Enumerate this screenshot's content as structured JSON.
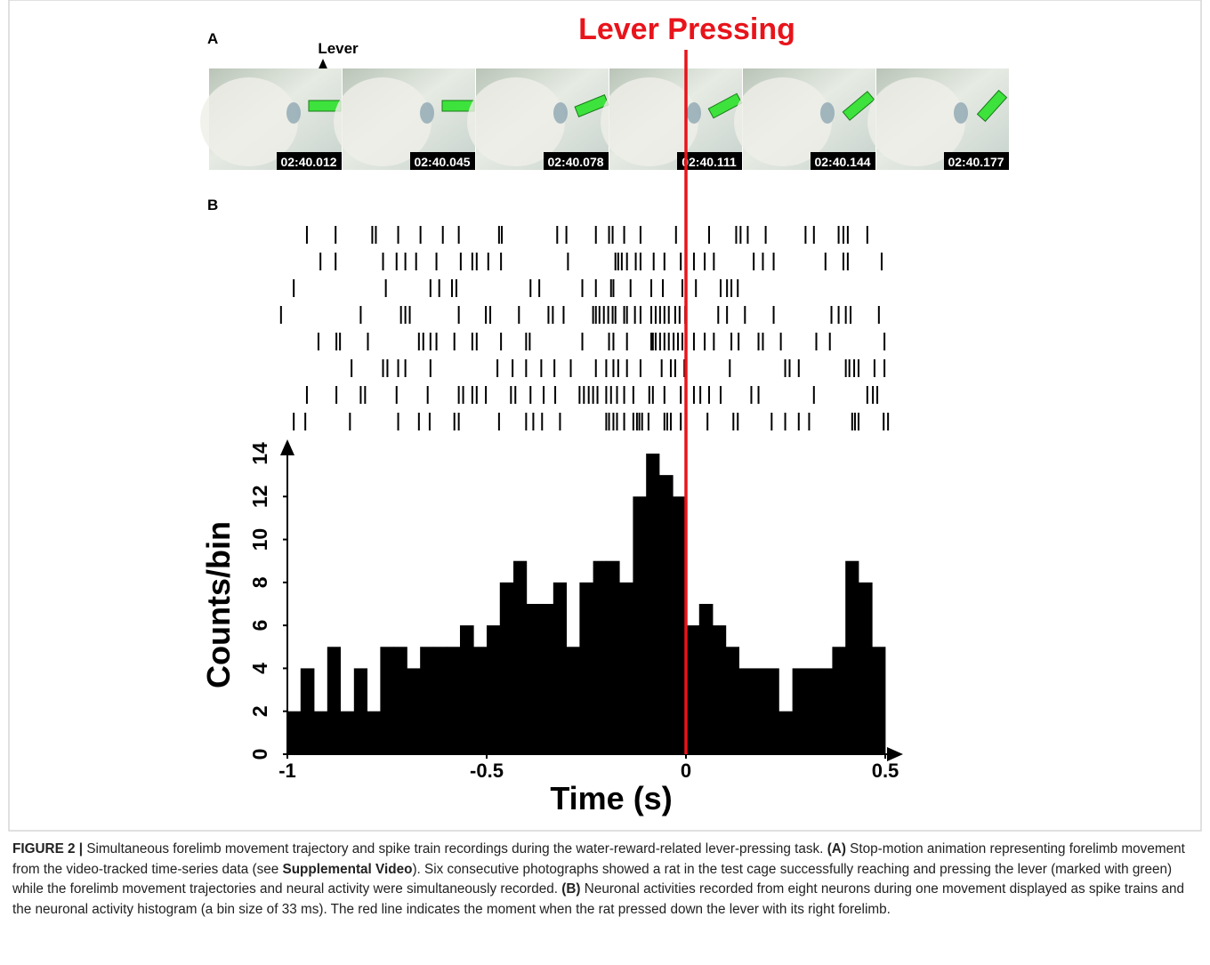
{
  "panel_a": {
    "label": "A",
    "lever_label": "Lever",
    "frames": [
      "02:40.012",
      "02:40.045",
      "02:40.078",
      "02:40.111",
      "02:40.144",
      "02:40.177"
    ]
  },
  "panel_b": {
    "label": "B"
  },
  "event": {
    "label": "Lever Pressing",
    "x": 0,
    "color": "#e8141b"
  },
  "chart_data": [
    {
      "type": "raster",
      "xlim": [
        -1,
        0.5
      ],
      "color": "#000000",
      "trains": [
        [
          -0.951,
          -0.879,
          -0.787,
          -0.778,
          -0.722,
          -0.666,
          -0.61,
          -0.57,
          -0.469,
          -0.462,
          -0.323,
          -0.3,
          -0.226,
          -0.193,
          -0.184,
          -0.155,
          -0.114,
          -0.025,
          0.058,
          0.126,
          0.137,
          0.155,
          0.2,
          0.3,
          0.321,
          0.383,
          0.395,
          0.406,
          0.455
        ],
        [
          -0.917,
          -0.879,
          -0.76,
          -0.726,
          -0.704,
          -0.677,
          -0.626,
          -0.565,
          -0.536,
          -0.525,
          -0.496,
          -0.464,
          -0.296,
          -0.177,
          -0.17,
          -0.161,
          -0.148,
          -0.126,
          -0.114,
          -0.081,
          -0.054,
          -0.013,
          0.02,
          0.047,
          0.07,
          0.17,
          0.193,
          0.22,
          0.35,
          0.395,
          0.406,
          0.491
        ],
        [
          -0.984,
          -0.753,
          -0.641,
          -0.619,
          -0.587,
          -0.576,
          -0.39,
          -0.368,
          -0.26,
          -0.226,
          -0.188,
          -0.182,
          -0.139,
          -0.087,
          -0.058,
          -0.009,
          0.025,
          0.087,
          0.103,
          0.114,
          0.13
        ],
        [
          -1.016,
          -0.816,
          -0.715,
          -0.704,
          -0.693,
          -0.57,
          -0.502,
          -0.491,
          -0.419,
          -0.345,
          -0.334,
          -0.307,
          -0.233,
          -0.226,
          -0.217,
          -0.206,
          -0.195,
          -0.184,
          -0.177,
          -0.155,
          -0.148,
          -0.128,
          -0.114,
          -0.087,
          -0.076,
          -0.065,
          -0.054,
          -0.043,
          -0.027,
          -0.016,
          -0.002,
          0.081,
          0.103,
          0.148,
          0.22,
          0.365,
          0.383,
          0.401,
          0.413,
          0.484
        ],
        [
          -0.922,
          -0.877,
          -0.868,
          -0.798,
          -0.67,
          -0.659,
          -0.641,
          -0.626,
          -0.581,
          -0.536,
          -0.525,
          -0.464,
          -0.401,
          -0.392,
          -0.26,
          -0.193,
          -0.182,
          -0.148,
          -0.087,
          -0.083,
          -0.076,
          -0.065,
          -0.054,
          -0.043,
          -0.031,
          -0.02,
          -0.009,
          0.02,
          0.047,
          0.07,
          0.114,
          0.132,
          0.182,
          0.193,
          0.238,
          0.327,
          0.361,
          0.498
        ],
        [
          -0.839,
          -0.76,
          -0.749,
          -0.722,
          -0.704,
          -0.641,
          -0.473,
          -0.435,
          -0.401,
          -0.363,
          -0.33,
          -0.289,
          -0.226,
          -0.2,
          -0.182,
          -0.17,
          -0.148,
          -0.114,
          -0.061,
          -0.038,
          -0.027,
          -0.004,
          0.11,
          0.249,
          0.26,
          0.283,
          0.401,
          0.41,
          0.422,
          0.433,
          0.473,
          0.498
        ],
        [
          -0.951,
          -0.877,
          -0.816,
          -0.805,
          -0.726,
          -0.648,
          -0.57,
          -0.559,
          -0.536,
          -0.525,
          -0.502,
          -0.439,
          -0.428,
          -0.39,
          -0.357,
          -0.328,
          -0.267,
          -0.256,
          -0.244,
          -0.233,
          -0.222,
          -0.2,
          -0.188,
          -0.173,
          -0.155,
          -0.132,
          -0.092,
          -0.083,
          -0.054,
          -0.013,
          0.02,
          0.036,
          0.058,
          0.087,
          0.164,
          0.182,
          0.321,
          0.455,
          0.469,
          0.48
        ],
        [
          -0.984,
          -0.955,
          -0.843,
          -0.722,
          -0.67,
          -0.643,
          -0.581,
          -0.57,
          -0.469,
          -0.401,
          -0.383,
          -0.361,
          -0.316,
          -0.2,
          -0.193,
          -0.182,
          -0.173,
          -0.155,
          -0.132,
          -0.123,
          -0.117,
          -0.11,
          -0.094,
          -0.054,
          -0.047,
          -0.038,
          -0.013,
          0.054,
          0.119,
          0.13,
          0.215,
          0.249,
          0.283,
          0.309,
          0.417,
          0.424,
          0.433,
          0.496,
          0.507
        ]
      ]
    },
    {
      "type": "histogram",
      "x_label": "Time (s)",
      "y_label": "Counts/bin",
      "color": "#000000",
      "bins": [
        -1,
        -0.967,
        -0.933,
        -0.9,
        -0.867,
        -0.833,
        -0.8,
        -0.767,
        -0.733,
        -0.7,
        -0.667,
        -0.633,
        -0.6,
        -0.567,
        -0.533,
        -0.5,
        -0.467,
        -0.433,
        -0.4,
        -0.367,
        -0.333,
        -0.3,
        -0.267,
        -0.233,
        -0.2,
        -0.167,
        -0.133,
        -0.1,
        -0.067,
        -0.033,
        0,
        0.033,
        0.067,
        0.1,
        0.133,
        0.167,
        0.2,
        0.233,
        0.267,
        0.3,
        0.333,
        0.367,
        0.4,
        0.433,
        0.467,
        0.5
      ],
      "values": [
        2,
        4,
        2,
        5,
        2,
        4,
        2,
        5,
        5,
        4,
        5,
        5,
        5,
        6,
        5,
        6,
        8,
        9,
        7,
        7,
        8,
        5,
        8,
        9,
        9,
        8,
        12,
        14,
        13,
        12,
        6,
        7,
        6,
        5,
        4,
        4,
        4,
        2,
        4,
        4,
        4,
        5,
        9,
        8,
        5
      ],
      "xlim": [
        -1,
        0.5
      ],
      "xticks": [
        -1,
        -0.5,
        0,
        0.5
      ],
      "ylim": [
        0,
        14
      ],
      "yticks": [
        0,
        2,
        4,
        6,
        8,
        10,
        12,
        14
      ]
    }
  ],
  "caption": [
    {
      "text": "FIGURE 2 | ",
      "bold": true
    },
    {
      "text": "Simultaneous forelimb movement trajectory and spike train recordings during the water-reward-related lever-pressing task. ",
      "bold": false
    },
    {
      "text": "(A)",
      "bold": true
    },
    {
      "text": " Stop-motion animation representing forelimb movement from the video-tracked time-series data (see ",
      "bold": false
    },
    {
      "text": "Supplemental Video",
      "bold": true
    },
    {
      "text": "). Six consecutive photographs showed a rat in the test cage successfully reaching and pressing the lever (marked with green) while the forelimb movement trajectories and neural activity were simultaneously recorded. ",
      "bold": false
    },
    {
      "text": "(B)",
      "bold": true
    },
    {
      "text": " Neuronal activities recorded from eight neurons during one movement displayed as spike trains and the neuronal activity histogram (a bin size of 33 ms). The red line indicates the moment when the rat pressed down the lever with its right forelimb.",
      "bold": false
    }
  ]
}
